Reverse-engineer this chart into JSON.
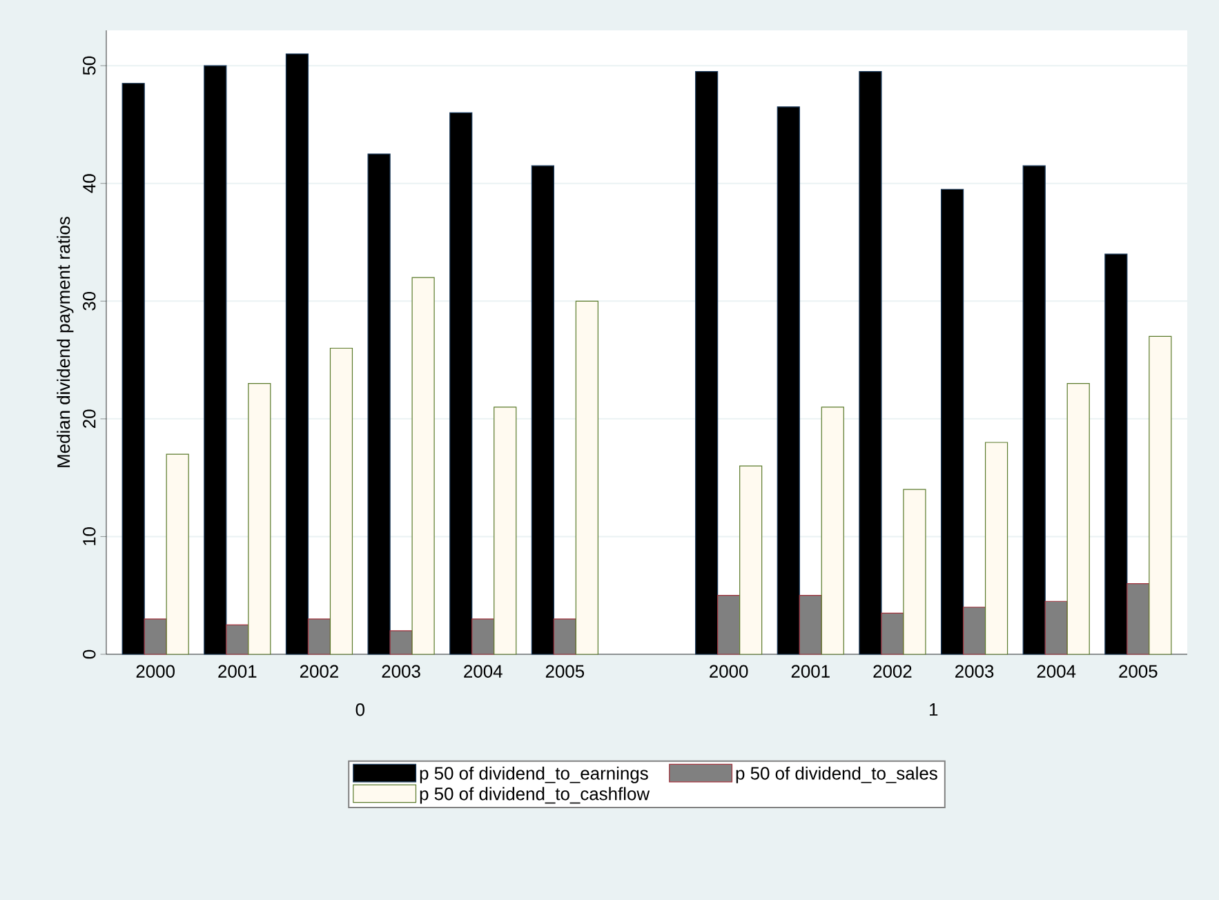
{
  "chart_data": {
    "type": "bar",
    "ylabel": "Median dividend payment ratios",
    "categories": [
      "2000",
      "2001",
      "2002",
      "2003",
      "2004",
      "2005",
      null,
      "2000",
      "2001",
      "2002",
      "2003",
      "2004",
      "2005"
    ],
    "series": [
      {
        "name": "p 50 of dividend_to_earnings",
        "color": "#000000",
        "values": [
          48.5,
          50,
          51,
          42.5,
          46,
          41.5,
          null,
          49.5,
          46.5,
          49.5,
          39.5,
          41.5,
          34
        ]
      },
      {
        "name": "p 50 of dividend_to_sales",
        "color": "#808080",
        "values": [
          3,
          2.5,
          3,
          2,
          3,
          3,
          null,
          5,
          5,
          3.5,
          4,
          4.5,
          6
        ]
      },
      {
        "name": "p 50 of dividend_to_cashflow",
        "color": "#fffaf0",
        "values": [
          17,
          23,
          26,
          32,
          21,
          30,
          null,
          16,
          21,
          14,
          18,
          23,
          27
        ]
      }
    ],
    "annotations": [
      "0",
      "1"
    ],
    "ylim": [
      0,
      53
    ],
    "yticks": [
      0,
      10,
      20,
      30,
      40,
      50
    ],
    "grid": "y",
    "legend": "bottom"
  }
}
